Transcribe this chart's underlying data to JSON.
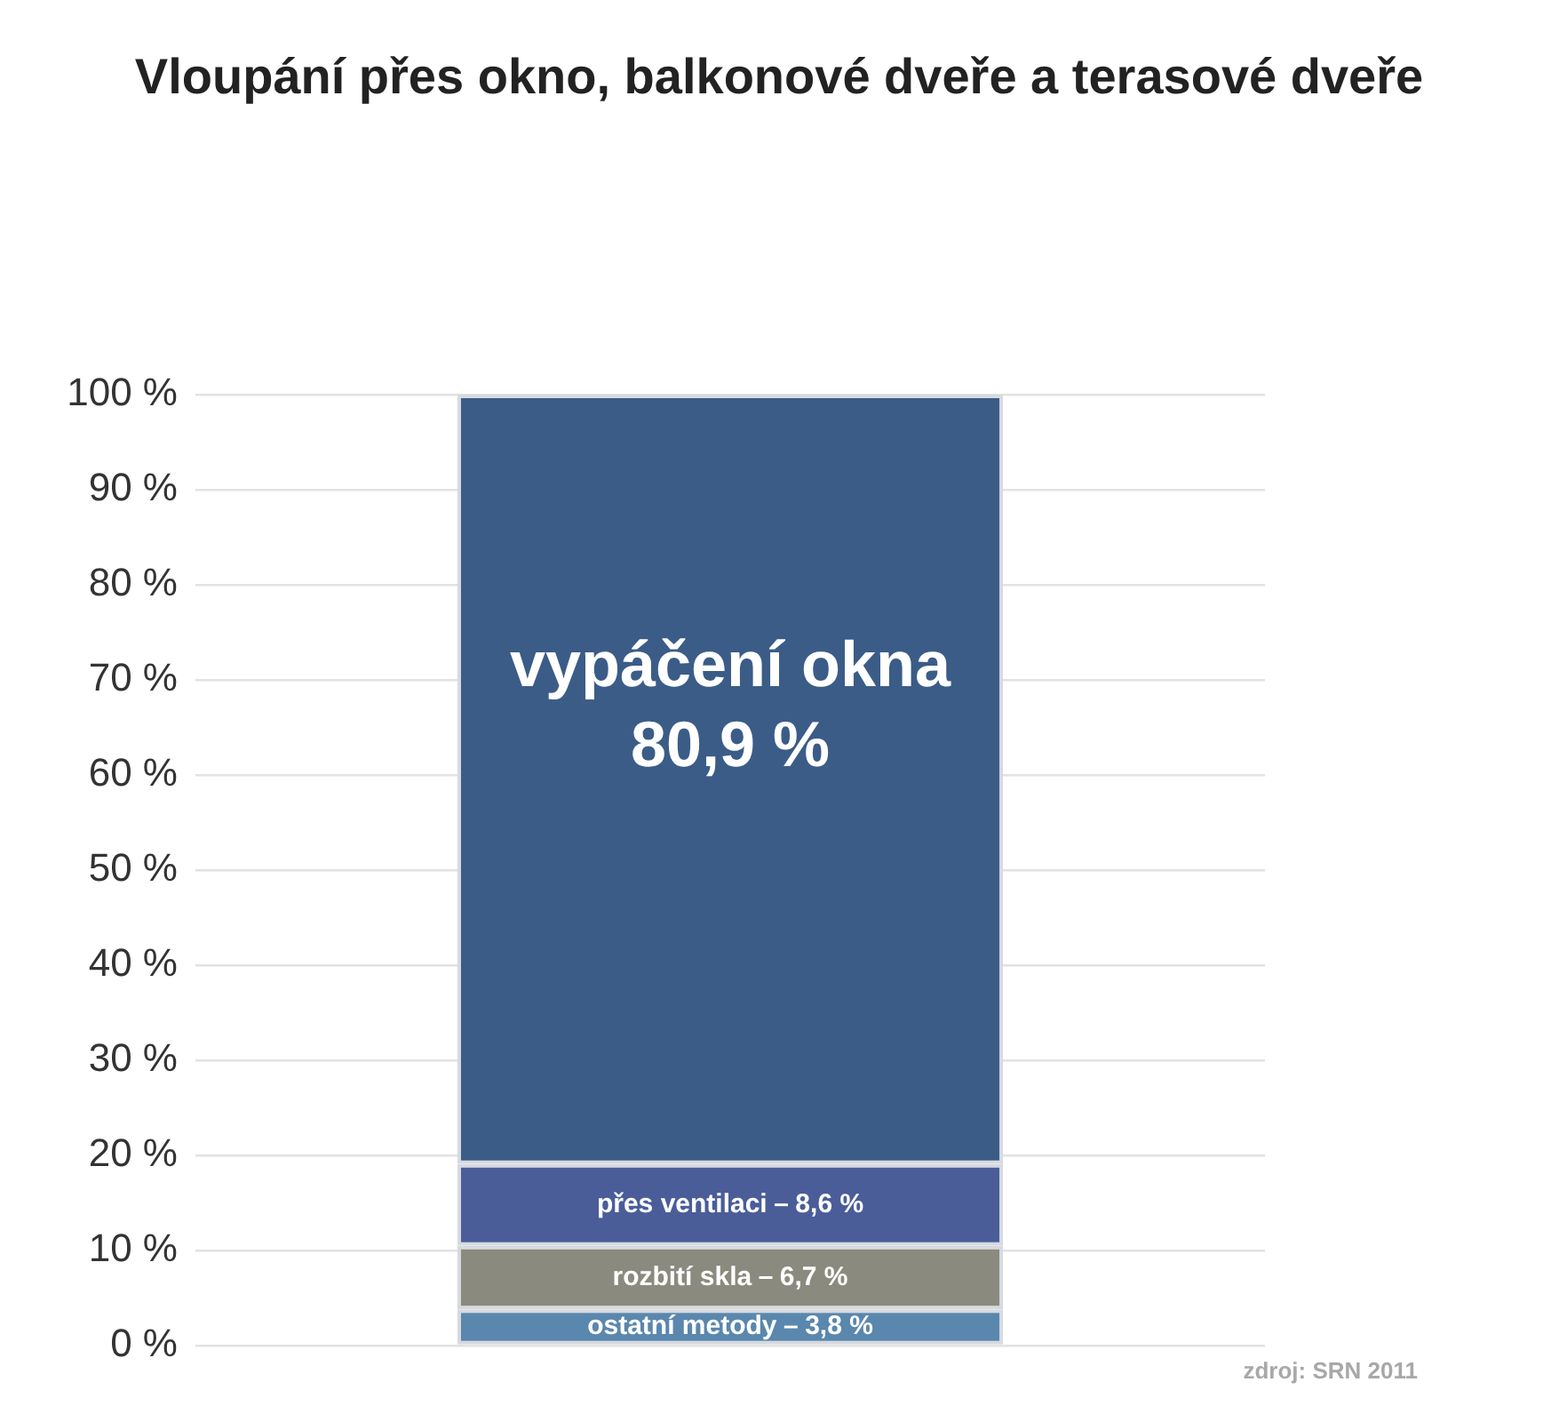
{
  "chart_data": {
    "type": "bar",
    "title": "Vloupání přes okno, balkonové dveře a terasové dveře",
    "categories": [
      null
    ],
    "stacked": true,
    "series": [
      {
        "name": "ostatní metody",
        "color": "#5a87ad",
        "values": [
          3.8
        ],
        "value_labels": [
          "3,8 %"
        ]
      },
      {
        "name": "rozbití skla",
        "color": "#8a8a7e",
        "values": [
          6.7
        ],
        "value_labels": [
          "6,7 %"
        ]
      },
      {
        "name": "přes ventilaci",
        "color": "#4a5d99",
        "values": [
          8.6
        ],
        "value_labels": [
          "8,6 %"
        ]
      },
      {
        "name": "vypáčení okna",
        "color": "#3b5c87",
        "values": [
          80.9
        ],
        "value_labels": [
          "80,9 %"
        ]
      }
    ],
    "ylim": [
      0,
      100
    ],
    "yticks": [
      {
        "value": 0,
        "label": "0 %"
      },
      {
        "value": 10,
        "label": "10 %"
      },
      {
        "value": 20,
        "label": "20 %"
      },
      {
        "value": 30,
        "label": "30 %"
      },
      {
        "value": 40,
        "label": "40 %"
      },
      {
        "value": 50,
        "label": "50 %"
      },
      {
        "value": 60,
        "label": "60 %"
      },
      {
        "value": 70,
        "label": "70 %"
      },
      {
        "value": 80,
        "label": "80 %"
      },
      {
        "value": 90,
        "label": "90 %"
      },
      {
        "value": 100,
        "label": "100 %"
      }
    ],
    "grid": "y",
    "tick_labels": "y",
    "annotations": [
      "zdroj: SRN 2011"
    ]
  }
}
